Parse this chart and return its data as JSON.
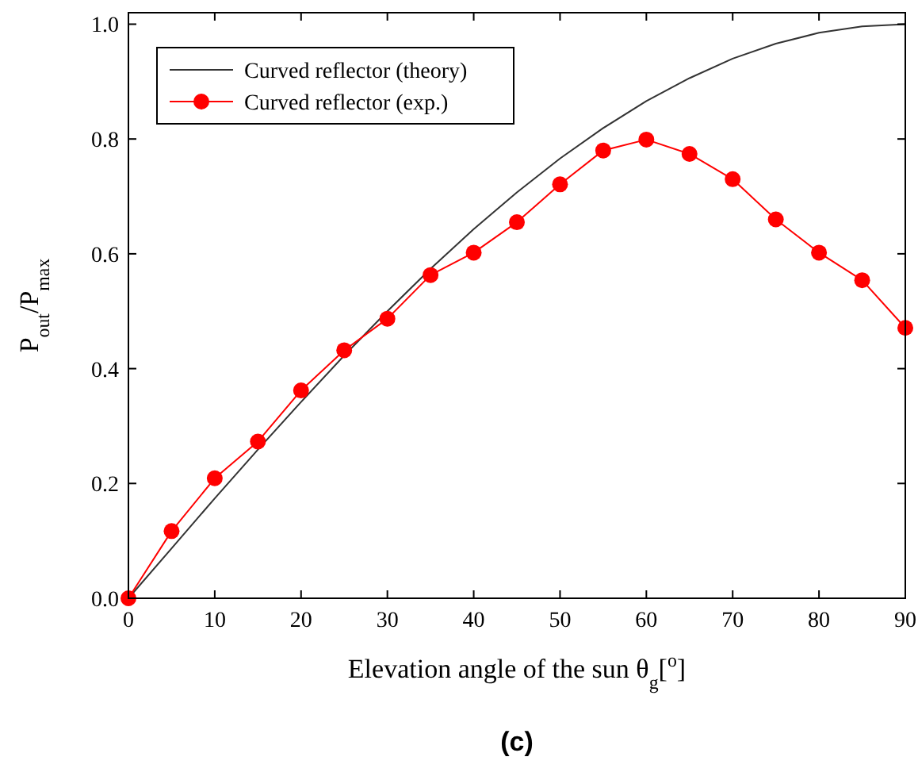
{
  "chart_data": {
    "type": "line",
    "xlabel": "Elevation angle of the sun θ$_{g}$[$^{o}$]",
    "ylabel": "P$_{out}$/P$_{max}$",
    "annotations": [
      "(c)"
    ],
    "xlim": [
      0,
      90
    ],
    "xticks": [
      0,
      10,
      20,
      30,
      40,
      50,
      60,
      70,
      80,
      90
    ],
    "ylim": [
      0,
      1.02
    ],
    "yticks": [
      {
        "value": 0,
        "label": "0.0"
      },
      {
        "value": 0.2,
        "label": "0.2"
      },
      {
        "value": 0.4,
        "label": "0.4"
      },
      {
        "value": 0.6,
        "label": "0.6"
      },
      {
        "value": 0.8,
        "label": "0.8"
      },
      {
        "value": 1,
        "label": "1.0"
      }
    ],
    "x": [
      0,
      5,
      10,
      15,
      20,
      25,
      30,
      35,
      40,
      45,
      50,
      55,
      60,
      65,
      70,
      75,
      80,
      85,
      90
    ],
    "legend": "top left",
    "grid": false,
    "series": [
      {
        "name": "Curved reflector (theory)",
        "color": "#333333",
        "marker": "none",
        "values": [
          0,
          0.087,
          0.174,
          0.259,
          0.342,
          0.423,
          0.5,
          0.574,
          0.643,
          0.707,
          0.766,
          0.819,
          0.866,
          0.906,
          0.94,
          0.966,
          0.985,
          0.996,
          1.0
        ]
      },
      {
        "name": "Curved reflector (exp.)",
        "color": "#ff0000",
        "marker": "circle",
        "values": [
          0,
          0.117,
          0.209,
          0.273,
          0.362,
          0.432,
          0.487,
          0.563,
          0.602,
          0.655,
          0.721,
          0.78,
          0.799,
          0.774,
          0.73,
          0.66,
          0.602,
          0.554,
          0.471
        ]
      }
    ]
  }
}
